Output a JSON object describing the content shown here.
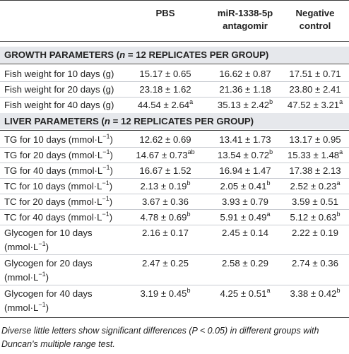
{
  "header": {
    "col1": "PBS",
    "col2_line1": "miR-1338-5p",
    "col2_line2": "antagomir",
    "col3_line1": "Negative",
    "col3_line2": "control"
  },
  "section_growth": {
    "prefix": "GROWTH PARAMETERS (",
    "n": "n",
    "suffix": " = 12 REPLICATES PER GROUP)"
  },
  "section_liver": {
    "prefix": "LIVER PARAMETERS (",
    "n": "n",
    "suffix": " = 12 REPLICATES PER GROUP)"
  },
  "growth_rows": [
    {
      "label": "Fish weight for 10 days (g)",
      "v1": "15.17 ± 0.65",
      "s1": "",
      "v2": "16.62 ± 0.87",
      "s2": "",
      "v3": "17.51 ± 0.71",
      "s3": ""
    },
    {
      "label": "Fish weight for 20 days (g)",
      "v1": "23.18 ± 1.62",
      "s1": "",
      "v2": "21.36 ± 1.18",
      "s2": "",
      "v3": "23.80 ± 2.41",
      "s3": ""
    },
    {
      "label": "Fish weight for 40 days (g)",
      "v1": "44.54 ± 2.64",
      "s1": "a",
      "v2": "35.13 ± 2.42",
      "s2": "b",
      "v3": "47.52 ± 3.21",
      "s3": "a"
    }
  ],
  "liver_rows": [
    {
      "label": "TG for 10 days (mmol·L",
      "unit_exp": "−1",
      "label_end": ")",
      "v1": "12.62 ± 0.69",
      "s1": "",
      "v2": "13.41 ± 1.73",
      "s2": "",
      "v3": "13.17 ± 0.95",
      "s3": ""
    },
    {
      "label": "TG for 20 days (mmol·L",
      "unit_exp": "−1",
      "label_end": ")",
      "v1": "14.67 ± 0.73",
      "s1": "ab",
      "v2": "13.54 ± 0.72",
      "s2": "b",
      "v3": "15.33 ± 1.48",
      "s3": "a"
    },
    {
      "label": "TG for 40 days (mmol·L",
      "unit_exp": "−1",
      "label_end": ")",
      "v1": "16.67 ± 1.52",
      "s1": "",
      "v2": "16.94 ± 1.47",
      "s2": "",
      "v3": "17.38 ± 2.13",
      "s3": ""
    },
    {
      "label": "TC for 10 days (mmol·L",
      "unit_exp": "−1",
      "label_end": ")",
      "v1": "2.13 ± 0.19",
      "s1": "b",
      "v2": "2.05 ± 0.41",
      "s2": "b",
      "v3": "2.52 ± 0.23",
      "s3": "a"
    },
    {
      "label": "TC for 20 days (mmol·L",
      "unit_exp": "−1",
      "label_end": ")",
      "v1": "3.67 ± 0.36",
      "s1": "",
      "v2": "3.93 ± 0.79",
      "s2": "",
      "v3": "3.59 ± 0.51",
      "s3": ""
    },
    {
      "label": "TC for 40 days (mmol·L",
      "unit_exp": "−1",
      "label_end": ")",
      "v1": "4.78 ± 0.69",
      "s1": "b",
      "v2": "5.91 ± 0.49",
      "s2": "a",
      "v3": "5.12 ± 0.63",
      "s3": "b"
    }
  ],
  "glycogen_rows": [
    {
      "label1": "Glycogen for 10 days",
      "label2": "(mmol·L",
      "unit_exp": "−1",
      "label_end": ")",
      "v1": "2.16 ± 0.17",
      "s1": "",
      "v2": "2.45 ± 0.14",
      "s2": "",
      "v3": "2.22 ± 0.19",
      "s3": ""
    },
    {
      "label1": "Glycogen for 20 days",
      "label2": "(mmol·L",
      "unit_exp": "−1",
      "label_end": ")",
      "v1": "2.47 ± 0.25",
      "s1": "",
      "v2": "2.58 ± 0.29",
      "s2": "",
      "v3": "2.74 ± 0.36",
      "s3": ""
    },
    {
      "label1": "Glycogen for 40 days",
      "label2": "(mmol·L",
      "unit_exp": "−1",
      "label_end": ")",
      "v1": "3.19 ± 0.45",
      "s1": "b",
      "v2": "4.25 ± 0.51",
      "s2": "a",
      "v3": "3.38 ± 0.42",
      "s3": "b"
    }
  ],
  "footnote": "Diverse little letters show significant differences (P < 0.05) in different groups with Duncan's multiple range test.",
  "colors": {
    "band": "#e6e8ec",
    "rule": "#3a3a3a",
    "thin_rule": "#c9ccd2",
    "text": "#222222"
  }
}
